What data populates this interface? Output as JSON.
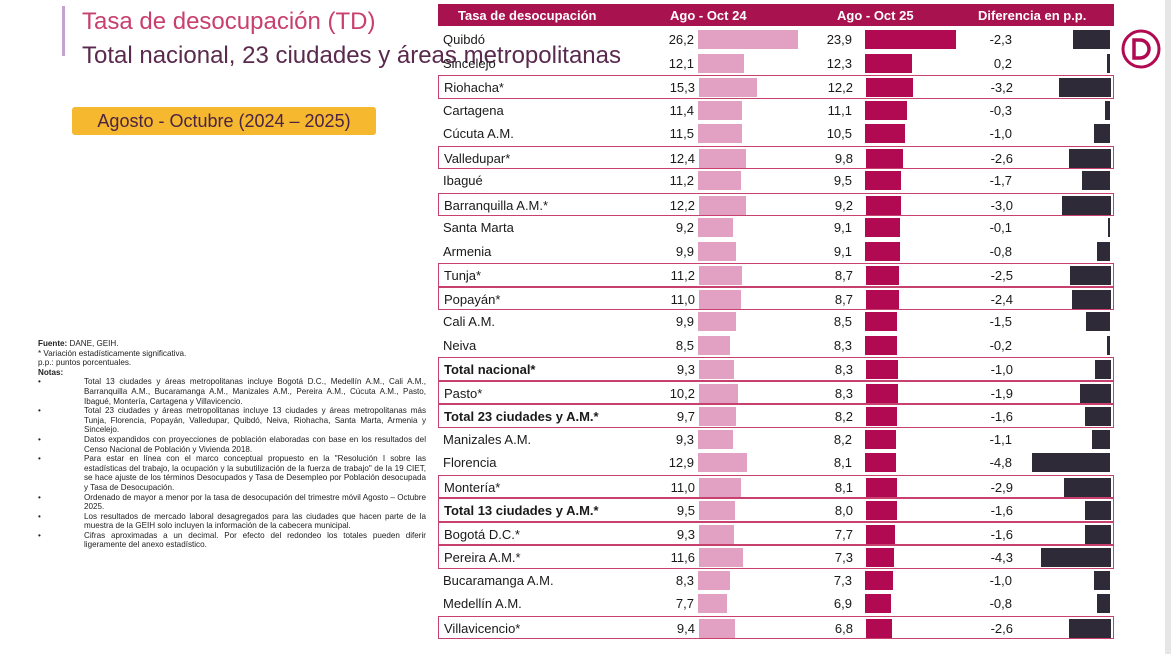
{
  "header": {
    "title_line1": "Tasa de desocupación (TD)",
    "title_line2": "Total nacional, 23 ciudades y áreas metropolitanas",
    "period": "Agosto - Octubre (2024 – 2025)"
  },
  "notes": {
    "fuente_label": "Fuente:",
    "fuente_text": " DANE, GEIH.",
    "sig": "* Variación estadísticamente significativa.",
    "pp": "p.p.: puntos porcentuales.",
    "notas_label": "Notas",
    "items": [
      "Total 13 ciudades y áreas metropolitanas incluye Bogotá D.C., Medellín A.M., Cali A.M., Barranquilla A.M., Bucaramanga A.M., Manizales A.M., Pereira A.M., Cúcuta A.M., Pasto, Ibagué, Montería, Cartagena y Villavicencio.",
      "Total 23 ciudades y áreas metropolitanas incluye 13 ciudades y áreas metropolitanas más Tunja, Florencia, Popayán, Valledupar, Quibdó, Neiva, Riohacha, Santa Marta, Armenia y Sincelejo.",
      "Datos expandidos con proyecciones de población elaboradas con base en los resultados del Censo Nacional de Población y Vivienda 2018.",
      "Para estar en línea con el marco conceptual propuesto en la \"Resolución I sobre las estadísticas del trabajo, la ocupación y la subutilización de la fuerza de trabajo\" de la 19 CIET, se hace ajuste de los términos Desocupados y Tasa de Desempleo por Población desocupada y Tasa de Desocupación.",
      "Ordenado de mayor a menor por la tasa de desocupación del trimestre móvil Agosto – Octubre 2025.",
      "Los resultados de mercado laboral desagregados para las ciudades que hacen parte de la muestra de la GEIH solo incluyen la información de la cabecera municipal.",
      "Cifras aproximadas a un decimal. Por efecto del redondeo los totales pueden diferir ligeramente del anexo estadístico."
    ]
  },
  "colors": {
    "period_2024": "#e2a0c2",
    "period_2025": "#b20a52",
    "difference": "#2e2a37",
    "header_bg": "#a8124e",
    "highlight_border": "#c8406e"
  },
  "chart_data": {
    "type": "table",
    "columns": [
      "Tasa de desocupación",
      "Ago - Oct 24",
      "Ago - Oct 25",
      "Diferencia en p.p."
    ],
    "rows": [
      {
        "label": "Quibdó",
        "v2024": "26,2",
        "v2025": "23,9",
        "diff": "-2,3",
        "bold": false,
        "boxed": false
      },
      {
        "label": "Sincelejo",
        "v2024": "12,1",
        "v2025": "12,3",
        "diff": "0,2",
        "bold": false,
        "boxed": false
      },
      {
        "label": "Riohacha*",
        "v2024": "15,3",
        "v2025": "12,2",
        "diff": "-3,2",
        "bold": false,
        "boxed": true
      },
      {
        "label": "Cartagena",
        "v2024": "11,4",
        "v2025": "11,1",
        "diff": "-0,3",
        "bold": false,
        "boxed": false
      },
      {
        "label": "Cúcuta A.M.",
        "v2024": "11,5",
        "v2025": "10,5",
        "diff": "-1,0",
        "bold": false,
        "boxed": false
      },
      {
        "label": "Valledupar*",
        "v2024": "12,4",
        "v2025": "9,8",
        "diff": "-2,6",
        "bold": false,
        "boxed": true
      },
      {
        "label": "Ibagué",
        "v2024": "11,2",
        "v2025": "9,5",
        "diff": "-1,7",
        "bold": false,
        "boxed": false
      },
      {
        "label": "Barranquilla A.M.*",
        "v2024": "12,2",
        "v2025": "9,2",
        "diff": "-3,0",
        "bold": false,
        "boxed": true
      },
      {
        "label": "Santa Marta",
        "v2024": "9,2",
        "v2025": "9,1",
        "diff": "-0,1",
        "bold": false,
        "boxed": false
      },
      {
        "label": "Armenia",
        "v2024": "9,9",
        "v2025": "9,1",
        "diff": "-0,8",
        "bold": false,
        "boxed": false
      },
      {
        "label": "Tunja*",
        "v2024": "11,2",
        "v2025": "8,7",
        "diff": "-2,5",
        "bold": false,
        "boxed": true
      },
      {
        "label": "Popayán*",
        "v2024": "11,0",
        "v2025": "8,7",
        "diff": "-2,4",
        "bold": false,
        "boxed": true
      },
      {
        "label": "Cali A.M.",
        "v2024": "9,9",
        "v2025": "8,5",
        "diff": "-1,5",
        "bold": false,
        "boxed": false
      },
      {
        "label": "Neiva",
        "v2024": "8,5",
        "v2025": "8,3",
        "diff": "-0,2",
        "bold": false,
        "boxed": false
      },
      {
        "label": "Total nacional*",
        "v2024": "9,3",
        "v2025": "8,3",
        "diff": "-1,0",
        "bold": true,
        "boxed": true
      },
      {
        "label": "Pasto*",
        "v2024": "10,2",
        "v2025": "8,3",
        "diff": "-1,9",
        "bold": false,
        "boxed": true
      },
      {
        "label": "Total 23 ciudades y A.M.*",
        "v2024": "9,7",
        "v2025": "8,2",
        "diff": "-1,6",
        "bold": true,
        "boxed": true
      },
      {
        "label": "Manizales A.M.",
        "v2024": "9,3",
        "v2025": "8,2",
        "diff": "-1,1",
        "bold": false,
        "boxed": false
      },
      {
        "label": "Florencia",
        "v2024": "12,9",
        "v2025": "8,1",
        "diff": "-4,8",
        "bold": false,
        "boxed": false
      },
      {
        "label": "Montería*",
        "v2024": "11,0",
        "v2025": "8,1",
        "diff": "-2,9",
        "bold": false,
        "boxed": true
      },
      {
        "label": "Total 13 ciudades y A.M.*",
        "v2024": "9,5",
        "v2025": "8,0",
        "diff": "-1,6",
        "bold": true,
        "boxed": true
      },
      {
        "label": "Bogotá D.C.*",
        "v2024": "9,3",
        "v2025": "7,7",
        "diff": "-1,6",
        "bold": false,
        "boxed": true
      },
      {
        "label": "Pereira A.M.*",
        "v2024": "11,6",
        "v2025": "7,3",
        "diff": "-4,3",
        "bold": false,
        "boxed": true
      },
      {
        "label": "Bucaramanga A.M.",
        "v2024": "8,3",
        "v2025": "7,3",
        "diff": "-1,0",
        "bold": false,
        "boxed": false
      },
      {
        "label": "Medellín A.M.",
        "v2024": "7,7",
        "v2025": "6,9",
        "diff": "-0,8",
        "bold": false,
        "boxed": false
      },
      {
        "label": "Villavicencio*",
        "v2024": "9,4",
        "v2025": "6,8",
        "diff": "-2,6",
        "bold": false,
        "boxed": true
      }
    ]
  }
}
